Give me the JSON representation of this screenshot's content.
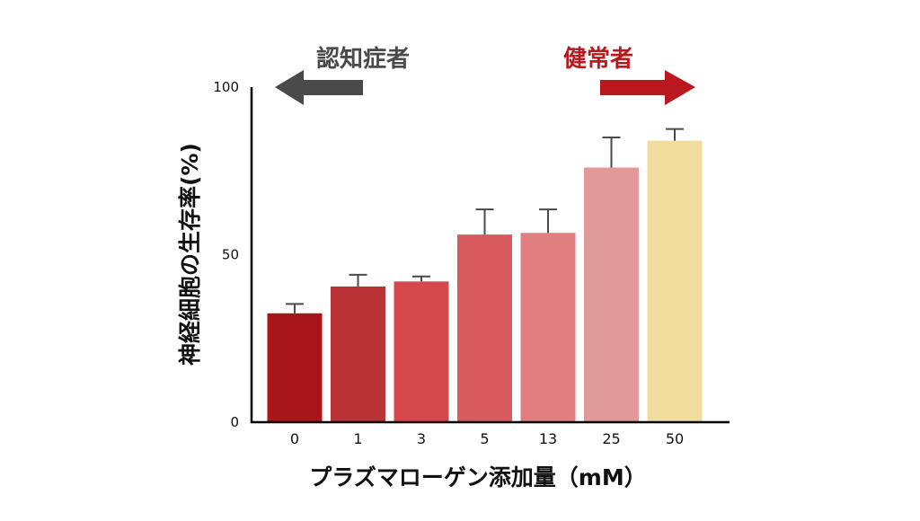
{
  "chart_data": {
    "type": "bar",
    "title": "",
    "xlabel": "プラズマローゲン添加量（mM）",
    "ylabel": "神経細胞の生存率(%)",
    "categories": [
      "0",
      "1",
      "3",
      "5",
      "13",
      "25",
      "50"
    ],
    "values": [
      32.5,
      40.5,
      42,
      56,
      56.5,
      76,
      84
    ],
    "errors": [
      2.8,
      3.5,
      1.5,
      7.5,
      7,
      9,
      3.5
    ],
    "bar_colors": [
      "#a8161a",
      "#b93236",
      "#d5484c",
      "#d85a5c",
      "#e17e80",
      "#e19a9a",
      "#f0dc9c"
    ],
    "ylim": [
      0,
      100
    ],
    "yticks": [
      0,
      50,
      100
    ],
    "grid": false,
    "annotations": {
      "left": {
        "label": "認知症者",
        "color": "#4a4a4a",
        "direction": "left"
      },
      "right": {
        "label": "健常者",
        "color": "#b9191e",
        "direction": "right"
      }
    }
  }
}
